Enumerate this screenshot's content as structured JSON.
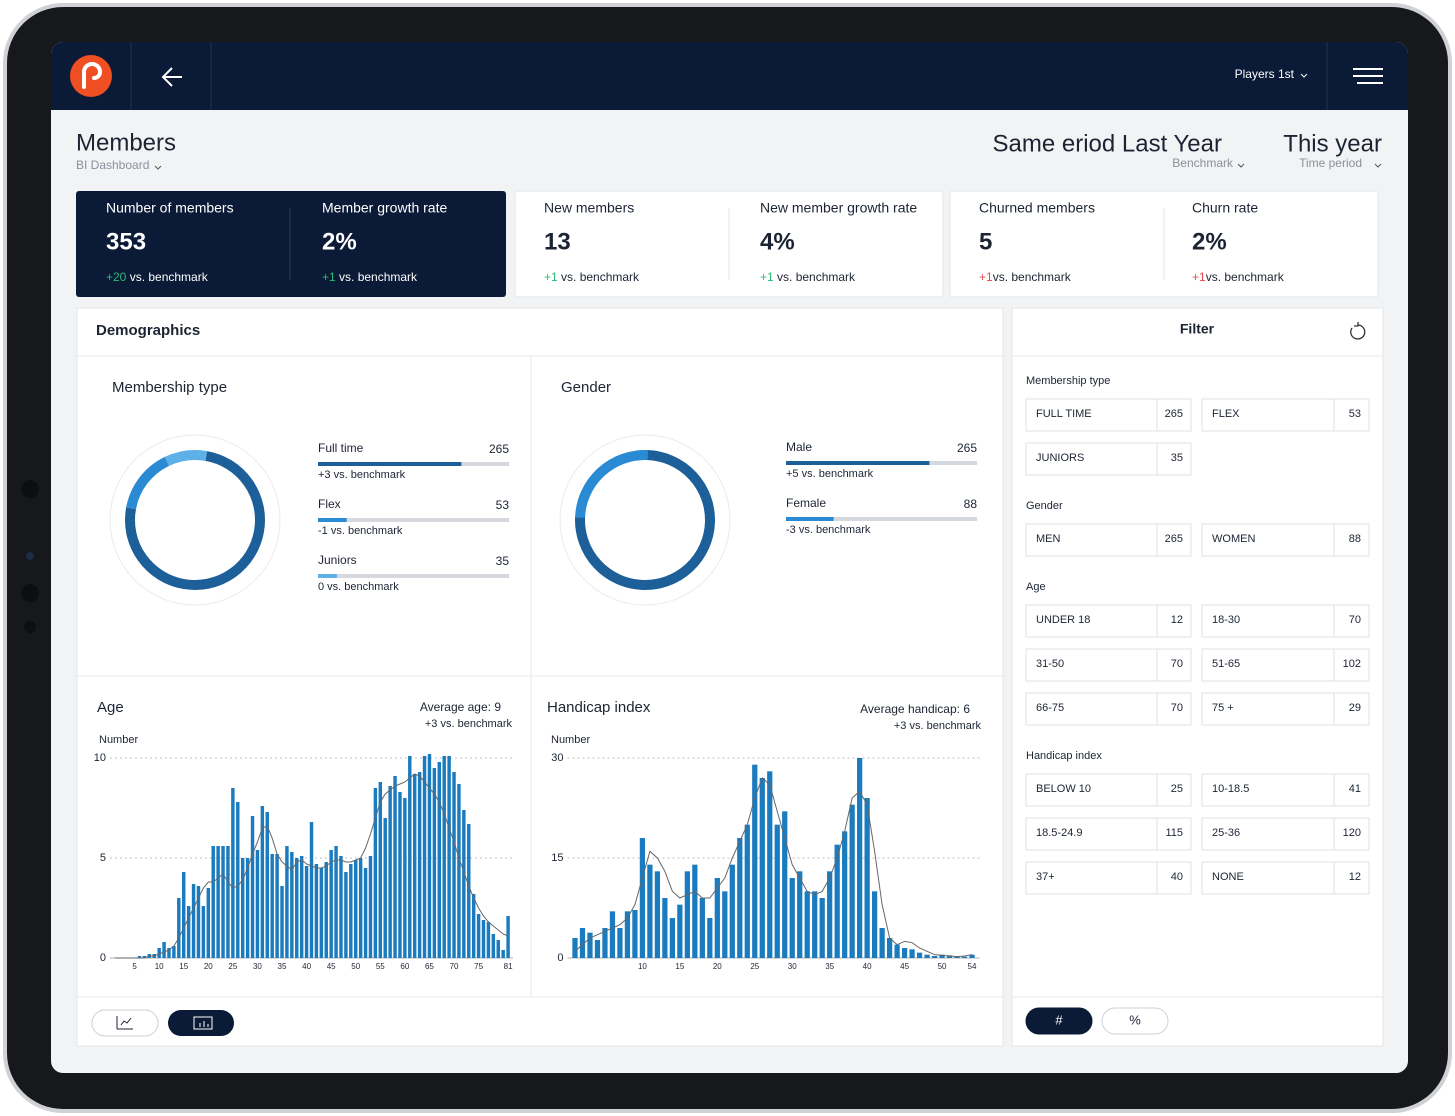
{
  "nav": {
    "menu": "Players 1st"
  },
  "header": {
    "title": "Members",
    "subtitle": "BI Dashboard",
    "benchmark": {
      "value": "Same eriod Last Year",
      "label": "Benchmark"
    },
    "period": {
      "value": "This year",
      "label": "Time period"
    }
  },
  "kpis": [
    {
      "label": "Number of members",
      "value": "353",
      "delta": "+20",
      "note": " vs. benchmark",
      "delta_color": "#2eb872"
    },
    {
      "label": "Member growth rate",
      "value": "2%",
      "delta": "+1",
      "note": " vs. benchmark",
      "delta_color": "#2eb872"
    },
    {
      "label": "New members",
      "value": "13",
      "delta": "+1",
      "note": " vs. benchmark",
      "delta_color": "#2eb872"
    },
    {
      "label": "New member growth rate",
      "value": "4%",
      "delta": "+1",
      "note": " vs. benchmark",
      "delta_color": "#2eb872"
    },
    {
      "label": "Churned members",
      "value": "5",
      "delta": "+1",
      "note": "vs. benchmark",
      "delta_color": "#e5484d"
    },
    {
      "label": "Churn rate",
      "value": "2%",
      "delta": "+1",
      "note": "vs. benchmark",
      "delta_color": "#e5484d"
    }
  ],
  "demographics": {
    "title": "Demographics",
    "membership": {
      "title": "Membership type",
      "items": [
        {
          "label": "Full time",
          "value": 265,
          "delta": "+3 vs. benchmark",
          "color": "#1d5f99"
        },
        {
          "label": "Flex",
          "value": 53,
          "delta": "-1 vs. benchmark",
          "color": "#2a8bd4"
        },
        {
          "label": "Juniors",
          "value": 35,
          "delta": "0 vs. benchmark",
          "color": "#5db0e8"
        }
      ]
    },
    "gender": {
      "title": "Gender",
      "items": [
        {
          "label": "Male",
          "value": 265,
          "delta": "+5 vs. benchmark",
          "color": "#1d5f99"
        },
        {
          "label": "Female",
          "value": 88,
          "delta": "-3 vs. benchmark",
          "color": "#2a8bd4"
        }
      ]
    },
    "age": {
      "type": "bar",
      "title": "Age",
      "average": "Average age: 9",
      "benchmark": "+3 vs. benchmark",
      "ylabel": "Number",
      "color": "#1a7bbf",
      "trend_color": "#666666",
      "x": [
        1,
        2,
        3,
        4,
        5,
        6,
        7,
        8,
        9,
        10,
        11,
        12,
        13,
        14,
        15,
        16,
        17,
        18,
        19,
        20,
        21,
        22,
        23,
        24,
        25,
        26,
        27,
        28,
        29,
        30,
        31,
        32,
        33,
        34,
        35,
        36,
        37,
        38,
        39,
        40,
        41,
        42,
        43,
        44,
        45,
        46,
        47,
        48,
        49,
        50,
        51,
        52,
        53,
        54,
        55,
        56,
        57,
        58,
        59,
        60,
        61,
        62,
        63,
        64,
        65,
        66,
        67,
        68,
        69,
        70,
        71,
        72,
        73,
        74,
        75,
        76,
        77,
        78,
        79,
        80,
        81
      ],
      "values": [
        0,
        0,
        0,
        0,
        0,
        0.1,
        0.1,
        0.2,
        0.2,
        0.5,
        0.8,
        0.5,
        0.6,
        3,
        4.3,
        2.6,
        3.7,
        3.6,
        2.6,
        3.5,
        5.6,
        5.6,
        5.6,
        5.6,
        8.5,
        7.8,
        5,
        5,
        7.1,
        5.4,
        7.6,
        7.3,
        5.2,
        5.2,
        3.6,
        5.6,
        5.3,
        5,
        5.1,
        4.6,
        6.8,
        4.7,
        4.5,
        4.8,
        5.4,
        5.6,
        5.1,
        4.3,
        4.7,
        4.9,
        5,
        4.5,
        5.1,
        8.5,
        8.8,
        7,
        8.6,
        9.1,
        8.3,
        8,
        10.1,
        9.2,
        9.3,
        10.1,
        10.2,
        9.5,
        9.8,
        10.1,
        10.1,
        9.3,
        8.7,
        7.4,
        6.7,
        3.2,
        2.2,
        1.9,
        1.8,
        1.2,
        0.9,
        0.4,
        2.1
      ],
      "trend": [
        0,
        0,
        0,
        0,
        0,
        0,
        0,
        0.1,
        0.1,
        0.2,
        0.3,
        0.4,
        0.6,
        1,
        1.5,
        2,
        2.5,
        3,
        3.5,
        3.8,
        3.8,
        4,
        4.2,
        3.8,
        3.5,
        3.6,
        3.9,
        4.5,
        5.2,
        5.8,
        6.5,
        6.6,
        6,
        5.2,
        4.8,
        4.6,
        4.4,
        4.8,
        4.9,
        4.7,
        4.6,
        4.5,
        4.5,
        4.6,
        4.8,
        4.9,
        4.9,
        4.8,
        4.8,
        4.9,
        5,
        5.5,
        6.2,
        7,
        7.8,
        8.2,
        8.4,
        8.6,
        8.7,
        8.8,
        9,
        9.2,
        9.1,
        8.8,
        8.5,
        8.2,
        7.8,
        7.2,
        6.5,
        5.8,
        5,
        4.3,
        3.6,
        3,
        2.5,
        2.1,
        1.8,
        1.6,
        1.4,
        1.2,
        1.1
      ],
      "xlim": [
        0,
        82
      ],
      "xticks": [
        5,
        10,
        15,
        20,
        25,
        30,
        35,
        40,
        45,
        50,
        55,
        60,
        65,
        70,
        75,
        81
      ],
      "ylim": [
        0,
        10
      ],
      "yticks": [
        0,
        5,
        10
      ]
    },
    "handicap": {
      "type": "bar",
      "title": "Handicap index",
      "average": "Average handicap: 6",
      "benchmark": "+3 vs. benchmark",
      "ylabel": "Number",
      "color": "#1a7bbf",
      "trend_color": "#666666",
      "x": [
        1,
        2,
        3,
        4,
        5,
        6,
        7,
        8,
        9,
        10,
        11,
        12,
        13,
        14,
        15,
        16,
        17,
        18,
        19,
        20,
        21,
        22,
        23,
        24,
        25,
        26,
        27,
        28,
        29,
        30,
        31,
        32,
        33,
        34,
        35,
        36,
        37,
        38,
        39,
        40,
        41,
        42,
        43,
        44,
        45,
        46,
        47,
        48,
        49,
        50,
        51,
        52,
        53,
        54
      ],
      "values": [
        3,
        4.5,
        3.8,
        2.7,
        4.5,
        7,
        4.5,
        7,
        7.2,
        18,
        14,
        13,
        9,
        6,
        8,
        13,
        14,
        9,
        6,
        12,
        10,
        14,
        18,
        20,
        29,
        27,
        28,
        20,
        22,
        12,
        13,
        10,
        10,
        9,
        13,
        17,
        19,
        23,
        30,
        24,
        10,
        4.5,
        3,
        2,
        1.5,
        1.3,
        0.8,
        0.5,
        0.3,
        0.5,
        0.4,
        0.3,
        0.2,
        0.5
      ],
      "trend": [
        1,
        2,
        3,
        3.5,
        4,
        4.5,
        5,
        6,
        8,
        12,
        16,
        15,
        13,
        10,
        9,
        9.5,
        10,
        9,
        9,
        10.5,
        12,
        15,
        17.5,
        20,
        24,
        27,
        26,
        22,
        18,
        14,
        12,
        10,
        9.5,
        10,
        12,
        15,
        19,
        24,
        25,
        23,
        16,
        8,
        3,
        2,
        2.5,
        2.3,
        1.5,
        1,
        0.5,
        0.4,
        0.3,
        0.2,
        0.3,
        0.5
      ],
      "xlim": [
        0,
        55
      ],
      "xticks": [
        10,
        15,
        20,
        25,
        30,
        35,
        40,
        45,
        50,
        54
      ],
      "ylim": [
        0,
        30
      ],
      "yticks": [
        0,
        15,
        30
      ]
    }
  },
  "filter": {
    "title": "Filter",
    "groups": [
      {
        "title": "Membership type",
        "options": [
          {
            "label": "FULL TIME",
            "count": 265
          },
          {
            "label": "FLEX",
            "count": 53
          },
          {
            "label": "JUNIORS",
            "count": 35
          }
        ]
      },
      {
        "title": "Gender",
        "options": [
          {
            "label": "MEN",
            "count": 265
          },
          {
            "label": "WOMEN",
            "count": 88
          }
        ]
      },
      {
        "title": "Age",
        "options": [
          {
            "label": "UNDER 18",
            "count": 12
          },
          {
            "label": "18-30",
            "count": 70
          },
          {
            "label": "31-50",
            "count": 70
          },
          {
            "label": "51-65",
            "count": 102
          },
          {
            "label": "66-75",
            "count": 70
          },
          {
            "label": "75 +",
            "count": 29
          }
        ]
      },
      {
        "title": "Handicap index",
        "options": [
          {
            "label": "BELOW 10",
            "count": 25
          },
          {
            "label": "10-18.5",
            "count": 41
          },
          {
            "label": "18.5-24.9",
            "count": 115
          },
          {
            "label": "25-36",
            "count": 120
          },
          {
            "label": "37+",
            "count": 40
          },
          {
            "label": "NONE",
            "count": 12
          }
        ]
      }
    ],
    "units": [
      "#",
      "%"
    ]
  }
}
